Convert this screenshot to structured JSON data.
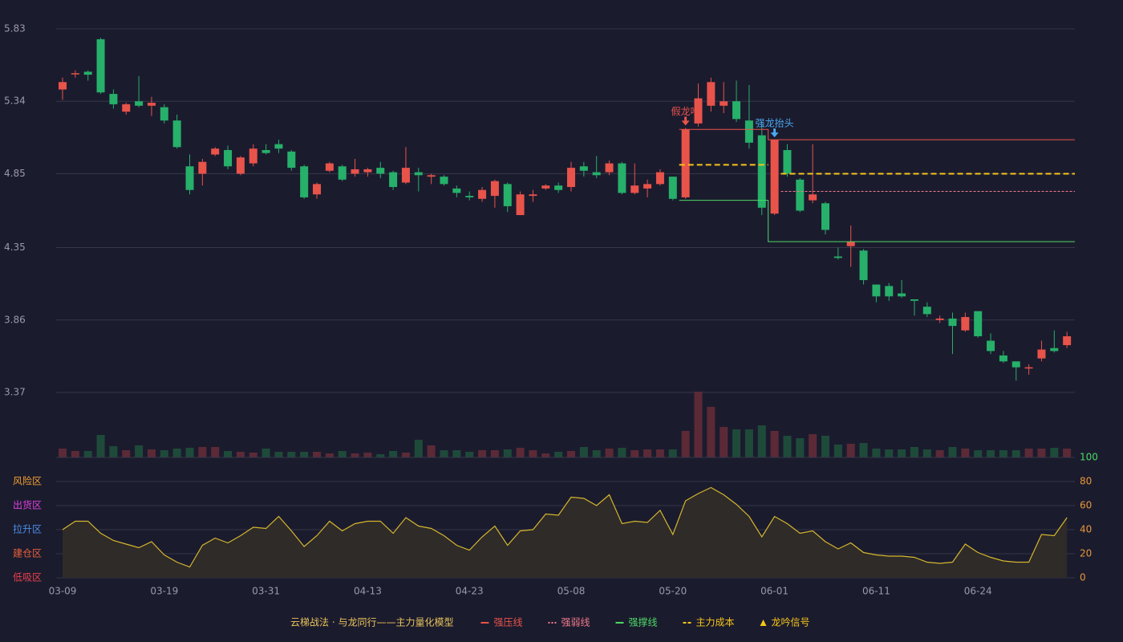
{
  "chart_data": [
    {
      "type": "candlestick",
      "open": [
        5.42,
        5.53,
        5.54,
        5.76,
        5.39,
        5.27,
        5.34,
        5.31,
        5.3,
        5.21,
        4.9,
        4.85,
        4.98,
        5.01,
        4.85,
        4.92,
        5.01,
        5.05,
        5.0,
        4.9,
        4.71,
        4.87,
        4.9,
        4.85,
        4.86,
        4.89,
        4.86,
        4.79,
        4.86,
        4.83,
        4.83,
        4.75,
        4.7,
        4.68,
        4.7,
        4.78,
        4.57,
        4.7,
        4.75,
        4.77,
        4.76,
        4.9,
        4.86,
        4.86,
        4.92,
        4.72,
        4.75,
        4.78,
        4.83,
        4.69,
        5.19,
        5.31,
        5.31,
        5.34,
        5.21,
        5.11,
        4.58,
        5.01,
        4.81,
        4.67,
        4.65,
        4.29,
        4.36,
        4.33,
        4.1,
        4.09,
        4.04,
        4.0,
        3.95,
        3.86,
        3.87,
        3.79,
        3.92,
        3.72,
        3.62,
        3.58,
        3.54,
        3.6,
        3.67,
        3.69
      ],
      "high": [
        5.5,
        5.55,
        5.55,
        5.77,
        5.42,
        5.33,
        5.51,
        5.37,
        5.32,
        5.25,
        4.98,
        4.95,
        5.03,
        5.04,
        4.97,
        5.05,
        5.05,
        5.08,
        5.01,
        4.91,
        4.79,
        4.93,
        4.91,
        4.95,
        4.89,
        4.93,
        4.87,
        5.03,
        4.89,
        4.85,
        4.84,
        4.77,
        4.73,
        4.76,
        4.81,
        4.79,
        4.73,
        4.74,
        4.78,
        4.79,
        4.93,
        4.93,
        4.97,
        4.94,
        4.93,
        4.92,
        4.81,
        4.88,
        4.83,
        5.16,
        5.46,
        5.5,
        5.47,
        5.48,
        5.45,
        5.2,
        5.08,
        5.05,
        4.82,
        5.05,
        4.66,
        4.35,
        4.5,
        4.34,
        4.1,
        4.11,
        4.13,
        4.0,
        3.98,
        3.89,
        3.91,
        3.91,
        3.92,
        3.77,
        3.65,
        3.58,
        3.56,
        3.72,
        3.79,
        3.78
      ],
      "low": [
        5.35,
        5.5,
        5.48,
        5.39,
        5.29,
        5.25,
        5.3,
        5.24,
        5.19,
        5.02,
        4.71,
        4.77,
        4.97,
        4.88,
        4.84,
        4.9,
        4.98,
        4.99,
        4.87,
        4.68,
        4.68,
        4.86,
        4.8,
        4.83,
        4.83,
        4.82,
        4.74,
        4.78,
        4.73,
        4.78,
        4.77,
        4.69,
        4.67,
        4.66,
        4.62,
        4.59,
        4.57,
        4.66,
        4.74,
        4.72,
        4.73,
        4.83,
        4.82,
        4.84,
        4.71,
        4.71,
        4.69,
        4.77,
        4.67,
        4.68,
        5.17,
        5.27,
        5.26,
        5.2,
        5.02,
        4.57,
        4.57,
        4.83,
        4.59,
        4.65,
        4.44,
        4.27,
        4.22,
        4.1,
        3.98,
        3.99,
        4.01,
        3.89,
        3.88,
        3.84,
        3.63,
        3.78,
        3.74,
        3.63,
        3.57,
        3.45,
        3.49,
        3.58,
        3.64,
        3.67
      ],
      "close": [
        5.47,
        5.53,
        5.52,
        5.4,
        5.32,
        5.32,
        5.31,
        5.33,
        5.21,
        5.03,
        4.74,
        4.93,
        5.02,
        4.9,
        4.96,
        5.02,
        4.99,
        5.02,
        4.89,
        4.69,
        4.78,
        4.92,
        4.81,
        4.88,
        4.88,
        4.85,
        4.76,
        4.89,
        4.84,
        4.84,
        4.78,
        4.72,
        4.69,
        4.74,
        4.8,
        4.63,
        4.71,
        4.71,
        4.77,
        4.74,
        4.89,
        4.87,
        4.84,
        4.92,
        4.72,
        4.77,
        4.78,
        4.86,
        4.68,
        5.15,
        5.36,
        5.47,
        5.34,
        5.22,
        5.06,
        4.62,
        5.08,
        4.85,
        4.6,
        4.71,
        4.47,
        4.28,
        4.39,
        4.13,
        4.02,
        4.02,
        4.02,
        3.99,
        3.9,
        3.87,
        3.82,
        3.88,
        3.75,
        3.65,
        3.58,
        3.54,
        3.54,
        3.66,
        3.65,
        3.75
      ],
      "up_color": "#e8534a",
      "down_color": "#26b06a",
      "ylim": [
        3.37,
        5.83
      ],
      "yticks": [
        3.37,
        3.86,
        4.35,
        4.85,
        5.34,
        5.83
      ],
      "grid": true,
      "lines": [
        {
          "name": "强压线",
          "color": "#e8534a",
          "style": "solid",
          "values": [
            null,
            null,
            null,
            null,
            null,
            null,
            null,
            null,
            null,
            null,
            null,
            null,
            null,
            null,
            null,
            null,
            null,
            null,
            null,
            null,
            null,
            null,
            null,
            null,
            null,
            null,
            null,
            null,
            null,
            null,
            null,
            null,
            null,
            null,
            null,
            null,
            null,
            null,
            null,
            null,
            null,
            null,
            null,
            null,
            null,
            null,
            null,
            null,
            null,
            5.15,
            5.15,
            5.15,
            5.15,
            5.15,
            5.15,
            5.15,
            5.08,
            5.08,
            5.08,
            5.08,
            5.08,
            5.08,
            5.08,
            5.08,
            5.08,
            5.08,
            5.08,
            5.08,
            5.08,
            5.08,
            5.08,
            5.08,
            5.08,
            5.08,
            5.08,
            5.08,
            5.08,
            5.08,
            5.08,
            5.08
          ]
        },
        {
          "name": "强弱线",
          "color": "#f07a8a",
          "style": "dotted",
          "values": [
            null,
            null,
            null,
            null,
            null,
            null,
            null,
            null,
            null,
            null,
            null,
            null,
            null,
            null,
            null,
            null,
            null,
            null,
            null,
            null,
            null,
            null,
            null,
            null,
            null,
            null,
            null,
            null,
            null,
            null,
            null,
            null,
            null,
            null,
            null,
            null,
            null,
            null,
            null,
            null,
            null,
            null,
            null,
            null,
            null,
            null,
            null,
            null,
            null,
            null,
            null,
            null,
            null,
            null,
            null,
            null,
            null,
            4.73,
            4.73,
            4.73,
            4.73,
            4.73,
            4.73,
            4.73,
            4.73,
            4.73,
            4.73,
            4.73,
            4.73,
            4.73,
            4.73,
            4.73,
            4.73,
            4.73,
            4.73,
            4.73,
            4.73,
            4.73,
            4.73,
            4.73
          ]
        },
        {
          "name": "强撑线",
          "color": "#4cd964",
          "style": "solid",
          "values": [
            null,
            null,
            null,
            null,
            null,
            null,
            null,
            null,
            null,
            null,
            null,
            null,
            null,
            null,
            null,
            null,
            null,
            null,
            null,
            null,
            null,
            null,
            null,
            null,
            null,
            null,
            null,
            null,
            null,
            null,
            null,
            null,
            null,
            null,
            null,
            null,
            null,
            null,
            null,
            null,
            null,
            null,
            null,
            null,
            null,
            null,
            null,
            null,
            null,
            4.67,
            4.67,
            4.67,
            4.67,
            4.67,
            4.67,
            4.67,
            4.39,
            4.39,
            4.39,
            4.39,
            4.39,
            4.39,
            4.39,
            4.39,
            4.39,
            4.39,
            4.39,
            4.39,
            4.39,
            4.39,
            4.39,
            4.39,
            4.39,
            4.39,
            4.39,
            4.39,
            4.39,
            4.39,
            4.39,
            4.39
          ]
        },
        {
          "name": "主力成本",
          "color": "#f5c518",
          "style": "dashed",
          "values": [
            null,
            null,
            null,
            null,
            null,
            null,
            null,
            null,
            null,
            null,
            null,
            null,
            null,
            null,
            null,
            null,
            null,
            null,
            null,
            null,
            null,
            null,
            null,
            null,
            null,
            null,
            null,
            null,
            null,
            null,
            null,
            null,
            null,
            null,
            null,
            null,
            null,
            null,
            null,
            null,
            null,
            null,
            null,
            null,
            null,
            null,
            null,
            null,
            null,
            4.91,
            4.91,
            4.91,
            4.91,
            4.91,
            4.91,
            4.91,
            null,
            4.85,
            4.85,
            4.85,
            4.85,
            4.85,
            4.85,
            4.85,
            4.85,
            4.85,
            4.85,
            4.85,
            4.85,
            4.85,
            4.85,
            4.85,
            4.85,
            4.85,
            4.85,
            4.85,
            4.85,
            4.85,
            4.85,
            4.85
          ]
        }
      ],
      "annotations": [
        {
          "text": "假龙吟",
          "index": 49,
          "color": "#e8534a"
        },
        {
          "text": "强龙抬头",
          "index": 56,
          "color": "#4aa8f0"
        }
      ],
      "signal_legend": {
        "name": "龙吟信号",
        "color": "#f5c518"
      }
    },
    {
      "type": "bar",
      "values": [
        11,
        8,
        8,
        28,
        14,
        9,
        15,
        10,
        9,
        11,
        12,
        13,
        13,
        8,
        7,
        6,
        11,
        7,
        7,
        7,
        7,
        5,
        8,
        5,
        6,
        4,
        8,
        6,
        22,
        15,
        9,
        9,
        7,
        9,
        9,
        10,
        12,
        9,
        5,
        7,
        8,
        13,
        9,
        11,
        12,
        9,
        10,
        10,
        10,
        33,
        82,
        63,
        38,
        35,
        35,
        40,
        33,
        27,
        24,
        29,
        27,
        16,
        17,
        18,
        11,
        10,
        10,
        13,
        10,
        9,
        13,
        11,
        9,
        9,
        9,
        9,
        11,
        11,
        12,
        11
      ]
    },
    {
      "type": "line",
      "categories": [
        "03-09",
        null,
        null,
        null,
        null,
        null,
        null,
        null,
        "03-19",
        null,
        null,
        null,
        null,
        null,
        null,
        null,
        "03-31",
        null,
        null,
        null,
        null,
        null,
        null,
        null,
        "04-13",
        null,
        null,
        null,
        null,
        null,
        null,
        null,
        "04-23",
        null,
        null,
        null,
        null,
        null,
        null,
        null,
        "05-08",
        null,
        null,
        null,
        null,
        null,
        null,
        null,
        "05-20",
        null,
        null,
        null,
        null,
        null,
        null,
        null,
        "06-01",
        null,
        null,
        null,
        null,
        null,
        null,
        null,
        "06-11",
        null,
        null,
        null,
        null,
        null,
        null,
        null,
        "06-24",
        null,
        null,
        null,
        null,
        null,
        null,
        null
      ],
      "values": [
        40,
        47,
        47,
        37,
        31,
        28,
        25,
        30,
        19,
        13,
        9,
        27,
        33,
        29,
        35,
        42,
        41,
        51,
        39,
        26,
        35,
        47,
        39,
        45,
        47,
        47,
        37,
        50,
        43,
        41,
        35,
        27,
        23,
        34,
        43,
        27,
        39,
        40,
        53,
        52,
        67,
        66,
        60,
        69,
        45,
        47,
        46,
        56,
        36,
        64,
        70,
        75,
        69,
        61,
        51,
        34,
        51,
        45,
        37,
        39,
        30,
        24,
        29,
        21,
        19,
        18,
        18,
        17,
        13,
        12,
        13,
        28,
        21,
        17,
        14,
        13,
        13,
        36,
        35,
        50
      ],
      "color": "#d4b62e",
      "fill": "#2f2b28",
      "ylim": [
        0,
        100
      ],
      "yticks": [
        0,
        20,
        40,
        60,
        80,
        100
      ],
      "tick_colors": [
        "#e8963a",
        "#e8963a",
        "#e8963a",
        "#e8963a",
        "#e8963a",
        "#4cd964"
      ],
      "zones": [
        {
          "value": 80,
          "label": "风险区",
          "color": "#f0a030"
        },
        {
          "value": 60,
          "label": "出货区",
          "color": "#e040e0"
        },
        {
          "value": 40,
          "label": "拉升区",
          "color": "#4a8fe8"
        },
        {
          "value": 20,
          "label": "建仓区",
          "color": "#e8603a"
        },
        {
          "value": 0,
          "label": "低吸区",
          "color": "#e8404a"
        }
      ]
    }
  ],
  "legend_title": "云梯战法 · 与龙同行——主力量化模型"
}
